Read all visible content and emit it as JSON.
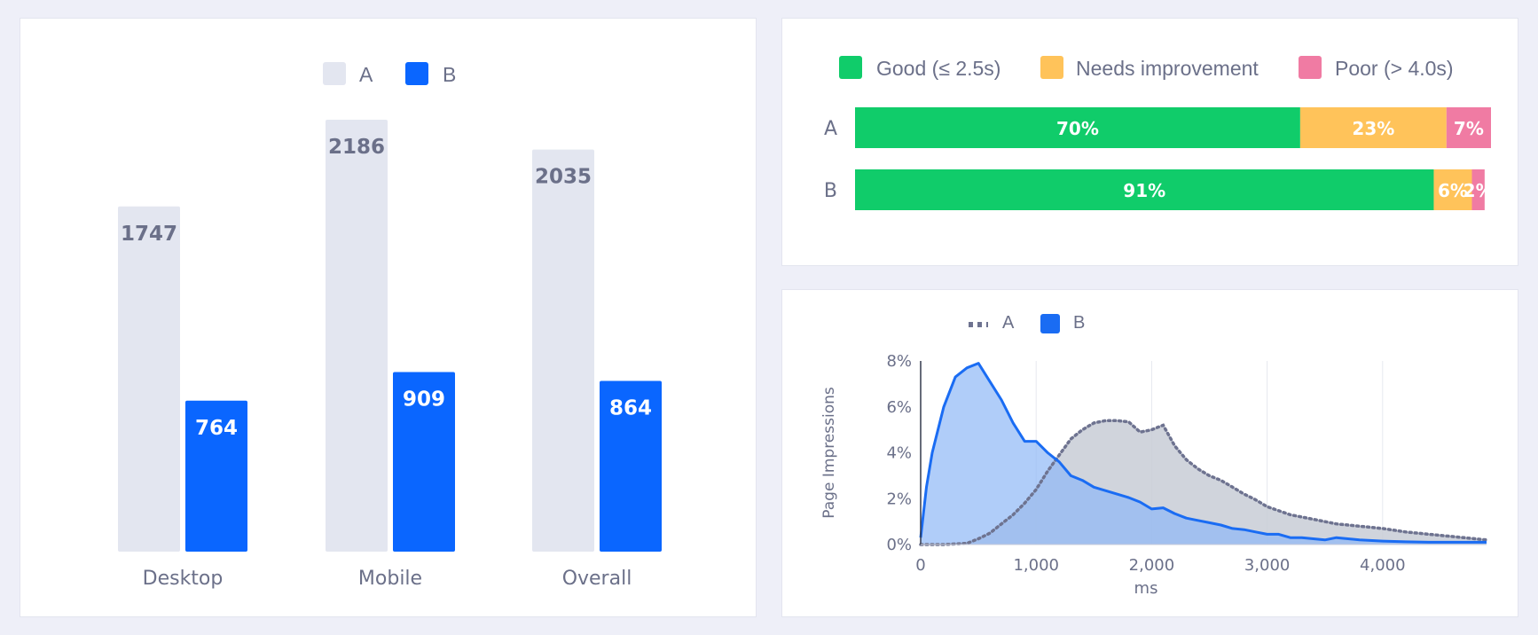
{
  "colors": {
    "background": "#eeeff8",
    "series_a": "#e3e6f0",
    "series_b": "#0a66ff",
    "good": "#10cc6a",
    "needs_improvement": "#ffc35a",
    "poor": "#f07ba3",
    "dist_a_fill": "#c8ccd6",
    "dist_a_line": "#6e7390",
    "dist_b_fill": "#8fb8f7",
    "dist_b_line": "#1a6cf3"
  },
  "chart_data": [
    {
      "type": "bar",
      "legend": [
        "A",
        "B"
      ],
      "legend_position": "top-center",
      "categories": [
        "Desktop",
        "Mobile",
        "Overall"
      ],
      "series": [
        {
          "name": "A",
          "values": [
            1747,
            2186,
            2035
          ]
        },
        {
          "name": "B",
          "values": [
            764,
            909,
            864
          ]
        }
      ],
      "ylim": [
        0,
        2186
      ],
      "grid": false
    },
    {
      "type": "bar",
      "orientation": "horizontal-stacked",
      "legend": [
        "Good (≤ 2.5s)",
        "Needs improvement",
        "Poor (> 4.0s)"
      ],
      "legend_position": "top-center",
      "categories": [
        "A",
        "B"
      ],
      "series": [
        {
          "name": "Good (≤ 2.5s)",
          "values": [
            70,
            91
          ],
          "labels": [
            "70%",
            "91%"
          ]
        },
        {
          "name": "Needs improvement",
          "values": [
            23,
            6
          ],
          "labels": [
            "23%",
            "6%"
          ]
        },
        {
          "name": "Poor (> 4.0s)",
          "values": [
            7,
            2
          ],
          "labels": [
            "7%",
            "2%"
          ]
        }
      ]
    },
    {
      "type": "area",
      "legend": [
        "A",
        "B"
      ],
      "legend_position": "top-left",
      "xlabel": "ms",
      "ylabel": "Page Impressions",
      "xlim": [
        0,
        4900
      ],
      "ylim": [
        0,
        8
      ],
      "xticks": [
        "0",
        "1,000",
        "2,000",
        "3,000",
        "4,000"
      ],
      "yticks": [
        "0%",
        "2%",
        "4%",
        "6%",
        "8%"
      ],
      "grid": true,
      "series": [
        {
          "name": "A",
          "style": "dotted",
          "x": [
            0,
            200,
            400,
            500,
            600,
            700,
            800,
            900,
            1000,
            1100,
            1200,
            1300,
            1400,
            1500,
            1600,
            1700,
            1800,
            1900,
            2000,
            2100,
            2200,
            2300,
            2400,
            2500,
            2600,
            2700,
            2800,
            2900,
            3000,
            3200,
            3400,
            3600,
            3800,
            4000,
            4200,
            4400,
            4600,
            4800,
            4900
          ],
          "y": [
            0,
            0,
            0.05,
            0.25,
            0.5,
            0.9,
            1.3,
            1.8,
            2.4,
            3.2,
            3.9,
            4.6,
            5.0,
            5.3,
            5.4,
            5.4,
            5.35,
            4.9,
            5.0,
            5.2,
            4.3,
            3.7,
            3.3,
            3.0,
            2.8,
            2.5,
            2.2,
            1.95,
            1.65,
            1.3,
            1.1,
            0.9,
            0.8,
            0.7,
            0.55,
            0.45,
            0.35,
            0.25,
            0.2
          ]
        },
        {
          "name": "B",
          "style": "solid",
          "x": [
            0,
            50,
            100,
            150,
            200,
            300,
            400,
            500,
            600,
            700,
            800,
            900,
            1000,
            1100,
            1200,
            1300,
            1400,
            1500,
            1600,
            1700,
            1800,
            1900,
            2000,
            2100,
            2200,
            2300,
            2400,
            2500,
            2600,
            2700,
            2800,
            2900,
            3000,
            3100,
            3200,
            3300,
            3400,
            3500,
            3600,
            3800,
            4000,
            4200,
            4400,
            4600,
            4800,
            4900
          ],
          "y": [
            0.3,
            2.5,
            4.0,
            5.0,
            6.0,
            7.3,
            7.7,
            7.9,
            7.1,
            6.3,
            5.3,
            4.5,
            4.5,
            4.0,
            3.6,
            3.0,
            2.8,
            2.5,
            2.35,
            2.2,
            2.05,
            1.85,
            1.55,
            1.6,
            1.35,
            1.15,
            1.05,
            0.95,
            0.85,
            0.7,
            0.65,
            0.55,
            0.45,
            0.45,
            0.3,
            0.3,
            0.25,
            0.2,
            0.3,
            0.2,
            0.15,
            0.12,
            0.1,
            0.1,
            0.1,
            0.1
          ]
        }
      ]
    }
  ]
}
